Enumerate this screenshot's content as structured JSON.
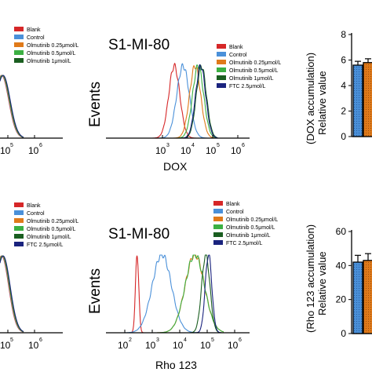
{
  "legend_items": [
    {
      "label": "Blank",
      "color": "#d62728"
    },
    {
      "label": "Control",
      "color": "#4a90d9"
    },
    {
      "label": "Olmutinib 0.25μmol/L",
      "color": "#e07a1a"
    },
    {
      "label": "Olmutinib 0.5μmol/L",
      "color": "#3cb043"
    },
    {
      "label": "Olmutinib 1μmol/L",
      "color": "#1a5e20"
    },
    {
      "label": "FTC 2.5μmol/L",
      "color": "#1a237e"
    }
  ],
  "chart_data": [
    {
      "type": "histogram",
      "title": "S1-MI-80",
      "xlabel": "DOX",
      "ylabel": "Events",
      "x_scale": "log",
      "x_ticks": [
        "10",
        "10",
        "10",
        "10"
      ],
      "x_tick_exponents": [
        "3",
        "4",
        "5",
        "6"
      ],
      "series": [
        {
          "name": "Blank",
          "color": "#d62728",
          "peak_log10": 3.47,
          "width": 0.22
        },
        {
          "name": "Control",
          "color": "#4a90d9",
          "peak_log10": 3.82,
          "width": 0.25
        },
        {
          "name": "Olmutinib 0.25μmol/L",
          "color": "#e07a1a",
          "peak_log10": 4.3,
          "width": 0.22
        },
        {
          "name": "Olmutinib 0.5μmol/L",
          "color": "#3cb043",
          "peak_log10": 4.42,
          "width": 0.22
        },
        {
          "name": "Olmutinib 1μmol/L",
          "color": "#1a5e20",
          "peak_log10": 4.55,
          "width": 0.2
        },
        {
          "name": "FTC 2.5μmol/L",
          "color": "#1a237e",
          "peak_log10": 4.52,
          "width": 0.2
        }
      ]
    },
    {
      "type": "histogram",
      "title": "S1-MI-80",
      "xlabel": "Rho 123",
      "ylabel": "Events",
      "x_scale": "log",
      "x_ticks": [
        "10",
        "10",
        "10",
        "10",
        "10"
      ],
      "x_tick_exponents": [
        "2",
        "3",
        "4",
        "5",
        "6"
      ],
      "series": [
        {
          "name": "Blank",
          "color": "#d62728",
          "peak_log10": 2.45,
          "width": 0.06
        },
        {
          "name": "Control",
          "color": "#4a90d9",
          "peak_log10": 3.35,
          "width": 0.35
        },
        {
          "name": "Olmutinib 0.25μmol/L",
          "color": "#e07a1a",
          "peak_log10": 4.55,
          "width": 0.35
        },
        {
          "name": "Olmutinib 0.5μmol/L",
          "color": "#3cb043",
          "peak_log10": 4.55,
          "width": 0.35
        },
        {
          "name": "Olmutinib 1μmol/L",
          "color": "#1a5e20",
          "peak_log10": 4.95,
          "width": 0.15
        },
        {
          "name": "FTC 2.5μmol/L",
          "color": "#1a237e",
          "peak_log10": 5.05,
          "width": 0.12
        }
      ]
    },
    {
      "type": "bar",
      "title": "",
      "ylabel": "(DOX accumulation) Relative value",
      "ylim": [
        0,
        8
      ],
      "y_ticks": [
        0,
        2,
        4,
        6,
        8
      ],
      "categories": [
        "Control",
        "Olmutinib 0.25μmol/L"
      ],
      "values": [
        5.6,
        5.8
      ],
      "errors": [
        0.3,
        0.3
      ],
      "colors": [
        "#4a90d9",
        "#e07a1a"
      ]
    },
    {
      "type": "bar",
      "title": "",
      "ylabel": "(Rho 123 accumulation) Relative value",
      "ylim": [
        0,
        60
      ],
      "y_ticks": [
        0,
        20,
        40,
        60
      ],
      "categories": [
        "Control",
        "Olmutinib 0.25μmol/L"
      ],
      "values": [
        42,
        43
      ],
      "errors": [
        4,
        4
      ],
      "colors": [
        "#4a90d9",
        "#e07a1a"
      ]
    }
  ],
  "left_partial_ticks": {
    "top": {
      "labels": [
        "10",
        "10"
      ],
      "exponents": [
        "5",
        "6"
      ]
    },
    "bottom": {
      "labels": [
        "10",
        "10"
      ],
      "exponents": [
        "5",
        "6"
      ]
    }
  },
  "dox_ylabel": {
    "line1": "(DOX accumulation)",
    "line2": "Relative value"
  },
  "rho_ylabel": {
    "line1": "(Rho 123 accumulation)",
    "line2": "Relative value"
  }
}
